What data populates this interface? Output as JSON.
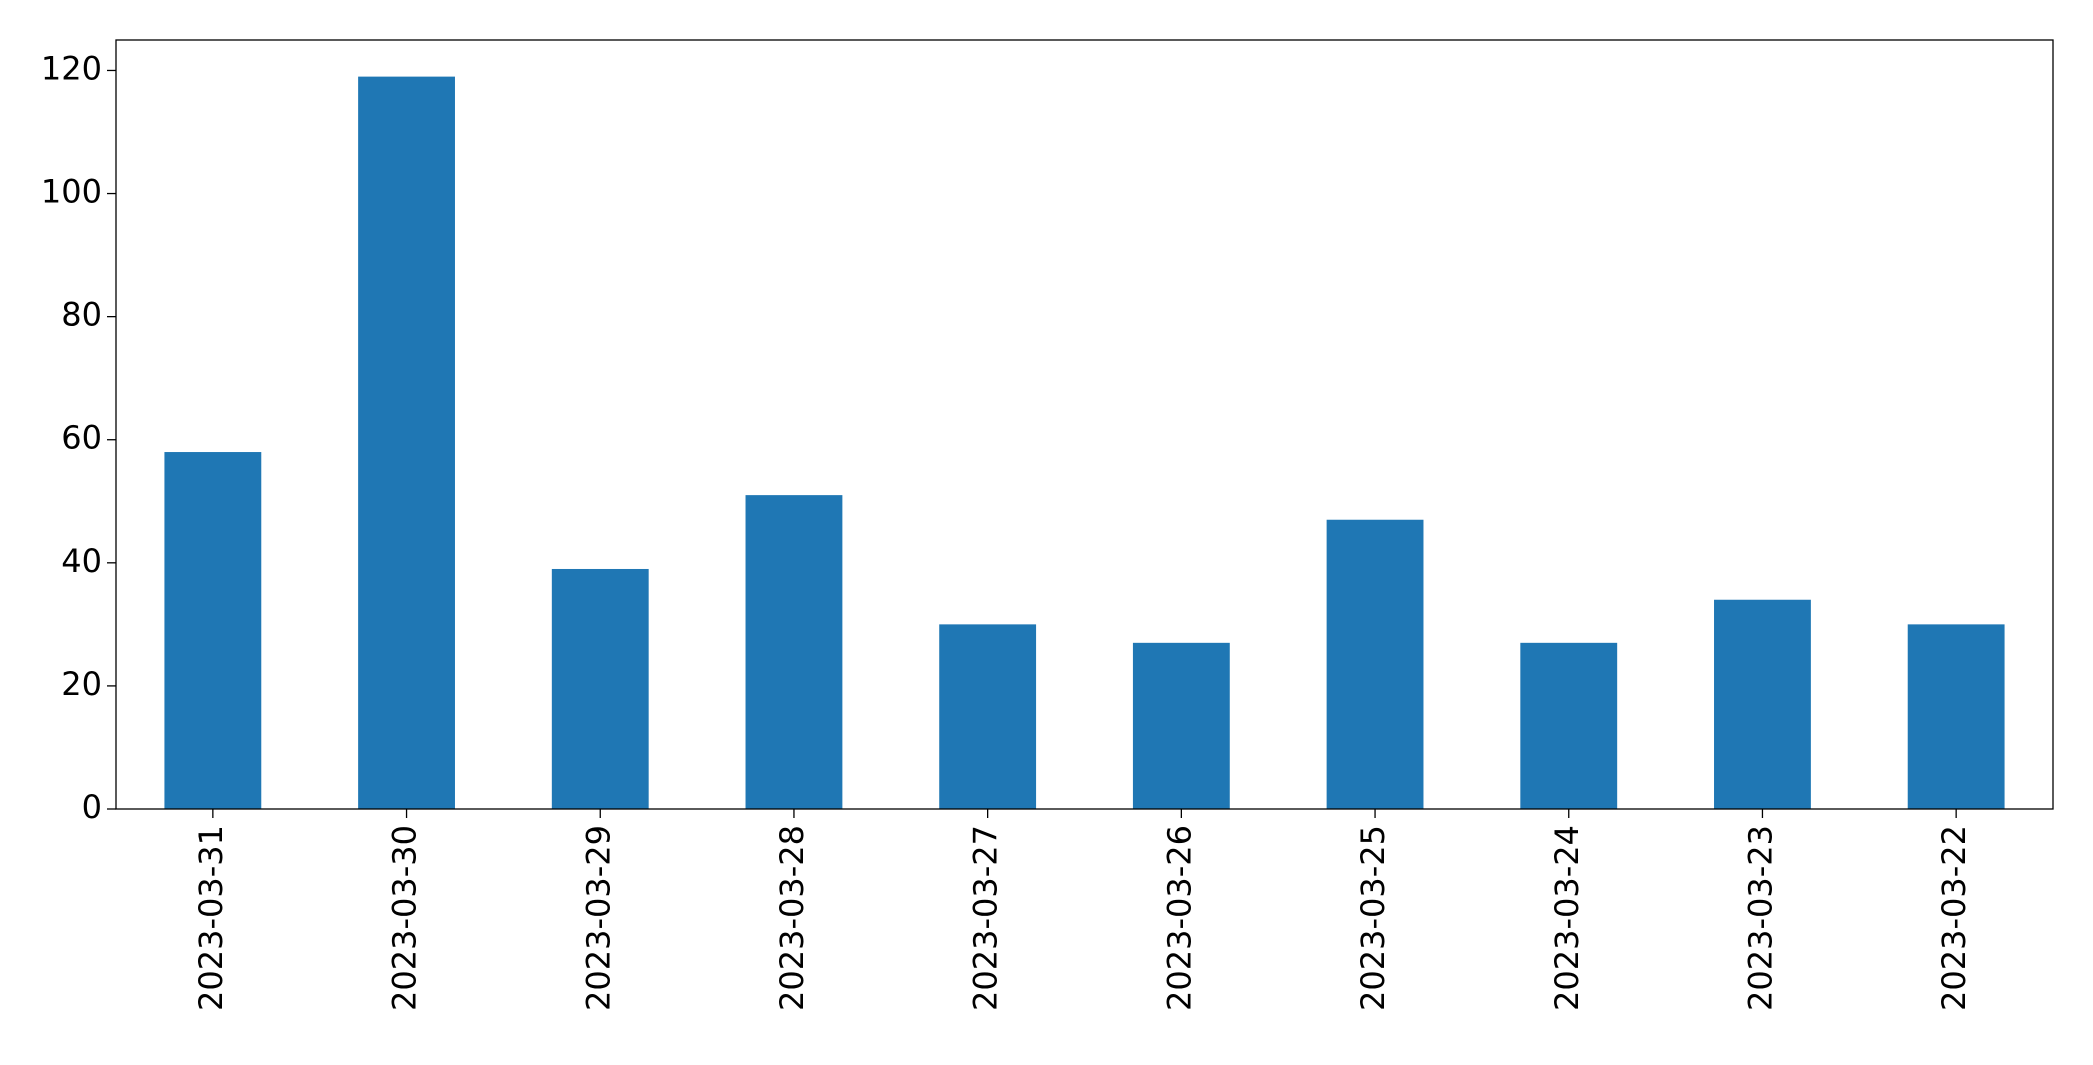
{
  "chart_data": {
    "type": "bar",
    "categories": [
      "2023-03-31",
      "2023-03-30",
      "2023-03-29",
      "2023-03-28",
      "2023-03-27",
      "2023-03-26",
      "2023-03-25",
      "2023-03-24",
      "2023-03-23",
      "2023-03-22"
    ],
    "values": [
      58,
      119,
      39,
      51,
      30,
      27,
      47,
      27,
      34,
      30
    ],
    "color": "#1f77b4",
    "ylim": [
      0,
      124.95
    ],
    "yticks": [
      0,
      20,
      40,
      60,
      80,
      100,
      120
    ],
    "grid": false
  }
}
